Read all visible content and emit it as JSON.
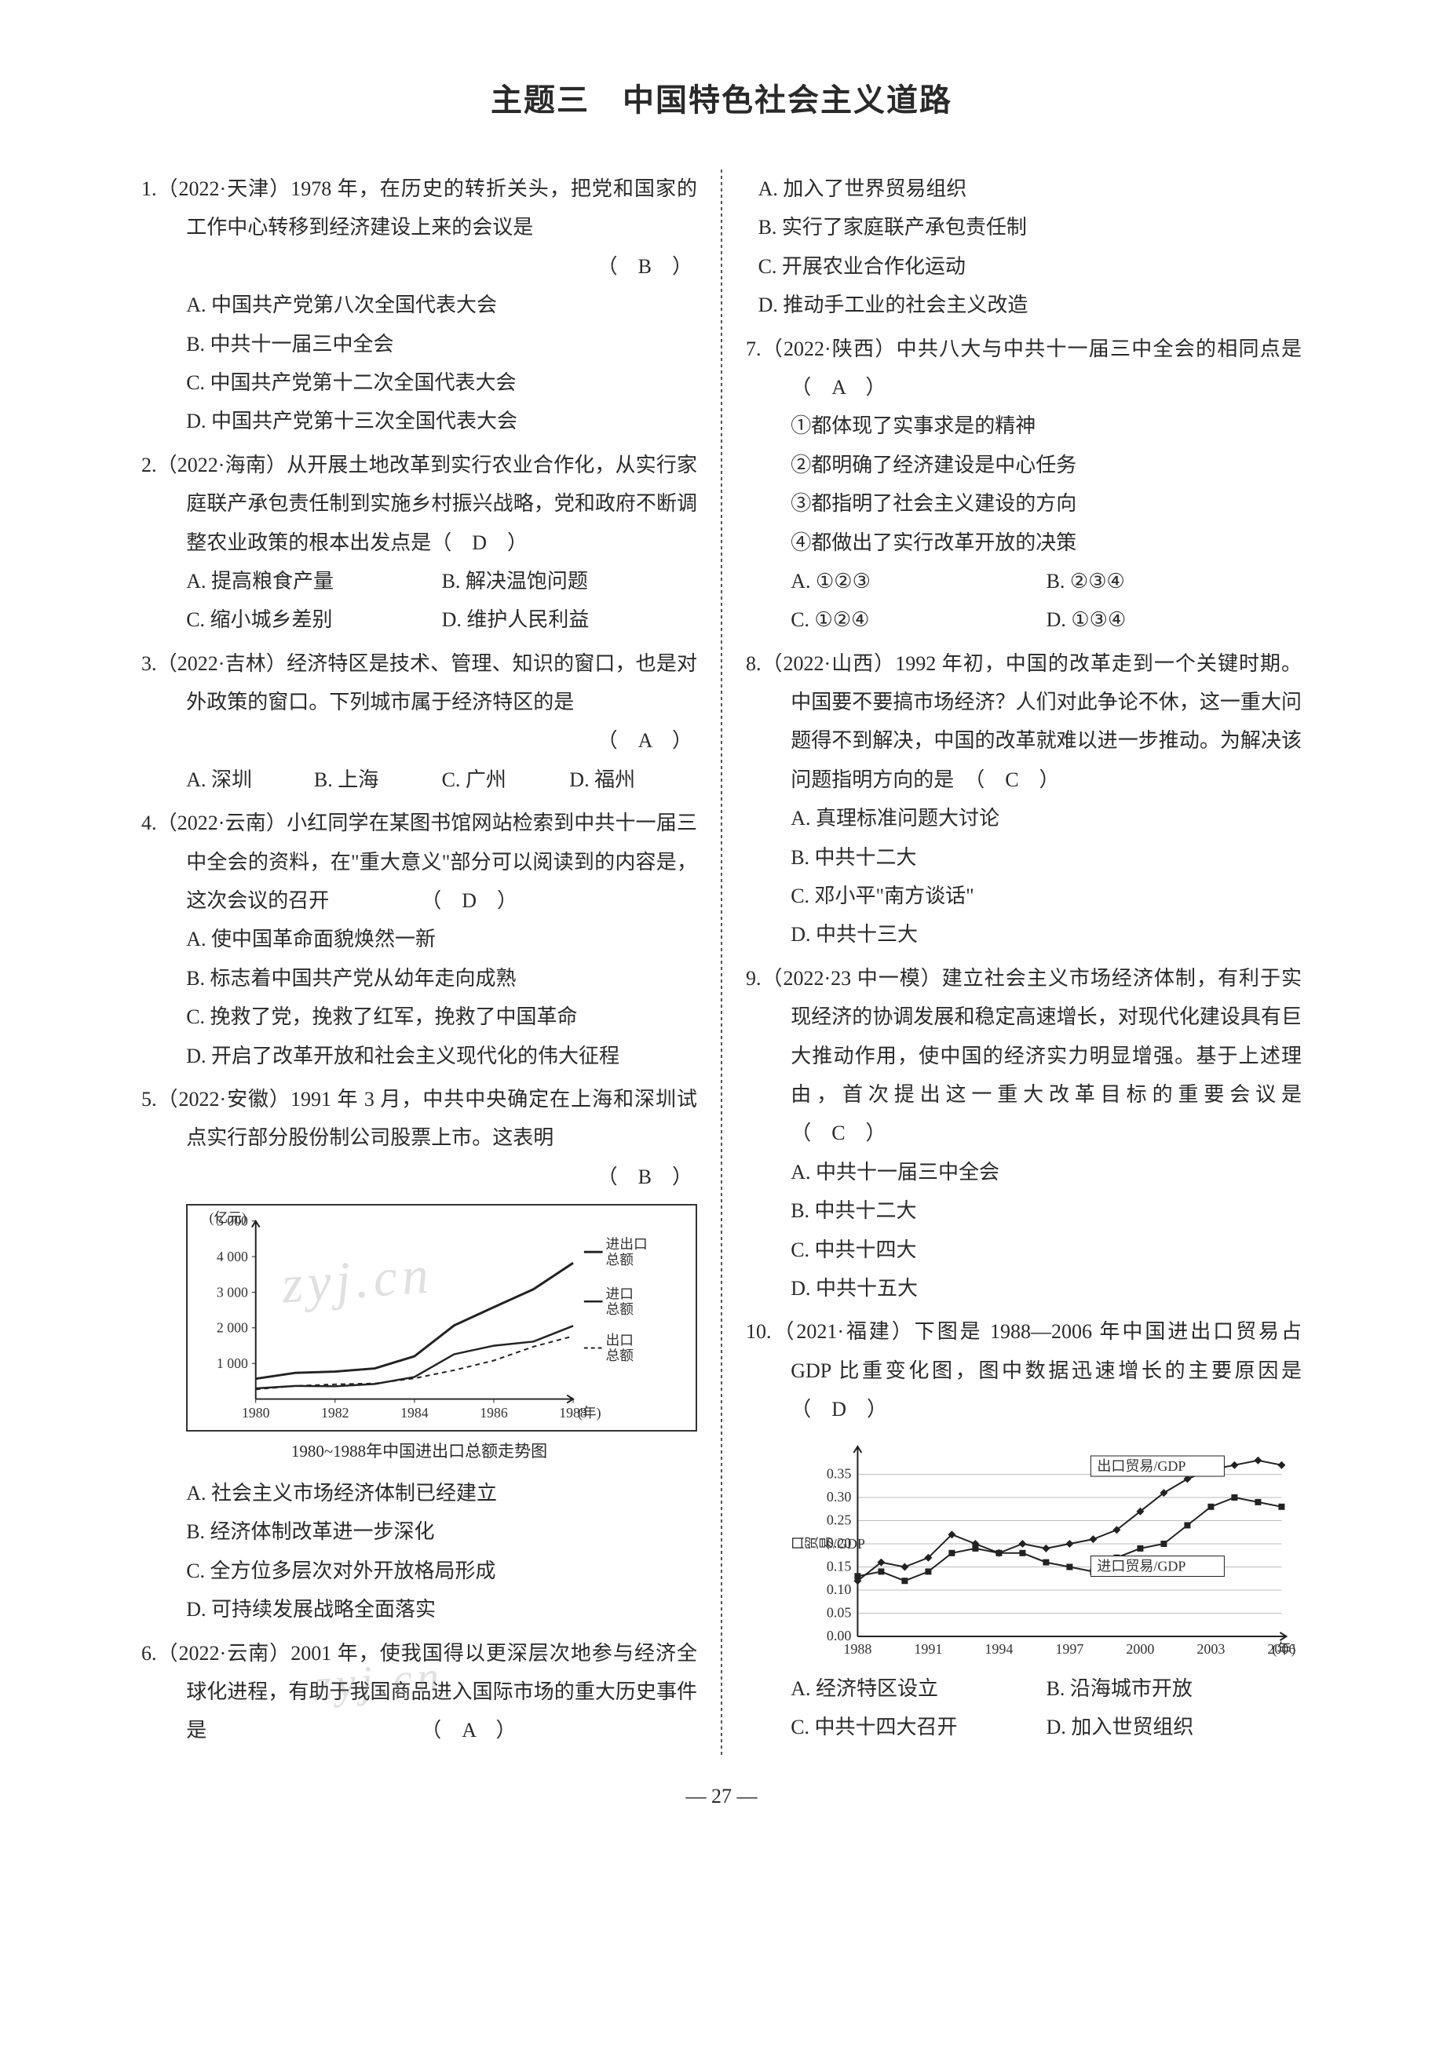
{
  "title": "主题三　中国特色社会主义道路",
  "page_number": "— 27 —",
  "watermark_text": "zyj.cn",
  "questions": {
    "q1": {
      "stem": "1.（2022·天津）1978 年，在历史的转折关头，把党和国家的工作中心转移到经济建设上来的会议是",
      "answer": "（　B　）",
      "opts": {
        "a": "A. 中国共产党第八次全国代表大会",
        "b": "B. 中共十一届三中全会",
        "c": "C. 中国共产党第十二次全国代表大会",
        "d": "D. 中国共产党第十三次全国代表大会"
      }
    },
    "q2": {
      "stem": "2.（2022·海南）从开展土地改革到实行农业合作化，从实行家庭联产承包责任制到实施乡村振兴战略，党和政府不断调整农业政策的根本出发点是（　D　）",
      "opts": {
        "a": "A. 提高粮食产量",
        "b": "B. 解决温饱问题",
        "c": "C. 缩小城乡差别",
        "d": "D. 维护人民利益"
      }
    },
    "q3": {
      "stem": "3.（2022·吉林）经济特区是技术、管理、知识的窗口，也是对外政策的窗口。下列城市属于经济特区的是",
      "answer": "（　A　）",
      "opts": {
        "a": "A. 深圳",
        "b": "B. 上海",
        "c": "C. 广州",
        "d": "D. 福州"
      }
    },
    "q4": {
      "stem": "4.（2022·云南）小红同学在某图书馆网站检索到中共十一届三中全会的资料，在\"重大意义\"部分可以阅读到的内容是，这次会议的召开　　　　　（　D　）",
      "opts": {
        "a": "A. 使中国革命面貌焕然一新",
        "b": "B. 标志着中国共产党从幼年走向成熟",
        "c": "C. 挽救了党，挽救了红军，挽救了中国革命",
        "d": "D. 开启了改革开放和社会主义现代化的伟大征程"
      }
    },
    "q5": {
      "stem": "5.（2022·安徽）1991 年 3 月，中共中央确定在上海和深圳试点实行部分股份制公司股票上市。这表明",
      "answer": "（　B　）",
      "opts": {
        "a": "A. 社会主义市场经济体制已经建立",
        "b": "B. 经济体制改革进一步深化",
        "c": "C. 全方位多层次对外开放格局形成",
        "d": "D. 可持续发展战略全面落实"
      }
    },
    "q6": {
      "stem": "6.（2022·云南）2001 年，使我国得以更深层次地参与经济全球化进程，有助于我国商品进入国际市场的重大历史事件是　　　　　　　　　　　（　A　）",
      "opts": {
        "a": "A. 加入了世界贸易组织",
        "b": "B. 实行了家庭联产承包责任制",
        "c": "C. 开展农业合作化运动",
        "d": "D. 推动手工业的社会主义改造"
      }
    },
    "q7": {
      "stem": "7.（2022·陕西）中共八大与中共十一届三中全会的相同点是　　　　　　　　　　　　　　（　A　）",
      "items": {
        "i1": "①都体现了实事求是的精神",
        "i2": "②都明确了经济建设是中心任务",
        "i3": "③都指明了社会主义建设的方向",
        "i4": "④都做出了实行改革开放的决策"
      },
      "opts": {
        "a": "A. ①②③",
        "b": "B. ②③④",
        "c": "C. ①②④",
        "d": "D. ①③④"
      }
    },
    "q8": {
      "stem": "8.（2022·山西）1992 年初，中国的改革走到一个关键时期。中国要不要搞市场经济？人们对此争论不休，这一重大问题得不到解决，中国的改革就难以进一步推动。为解决该问题指明方向的是　（　C　）",
      "opts": {
        "a": "A. 真理标准问题大讨论",
        "b": "B. 中共十二大",
        "c": "C. 邓小平\"南方谈话\"",
        "d": "D. 中共十三大"
      }
    },
    "q9": {
      "stem": "9.（2022·23 中一模）建立社会主义市场经济体制，有利于实现经济的协调发展和稳定高速增长，对现代化建设具有巨大推动作用，使中国的经济实力明显增强。基于上述理由，首次提出这一重大改革目标的重要会议是　　　　　　　　　　　　（　C　）",
      "opts": {
        "a": "A. 中共十一届三中全会",
        "b": "B. 中共十二大",
        "c": "C. 中共十四大",
        "d": "D. 中共十五大"
      }
    },
    "q10": {
      "stem": "10.（2021·福建）下图是 1988—2006 年中国进出口贸易占 GDP 比重变化图，图中数据迅速增长的主要原因是　　　　　　　　　　　　　　（　D　）",
      "opts": {
        "a": "A. 经济特区设立",
        "b": "B. 沿海城市开放",
        "c": "C. 中共十四大召开",
        "d": "D. 加入世贸组织"
      }
    }
  },
  "chart1": {
    "caption": "1980~1988年中国进出口总额走势图",
    "y_label": "(亿元)",
    "x_label_suffix": "(年)",
    "y_ticks": [
      1000,
      2000,
      3000,
      4000,
      5000
    ],
    "x_ticks": [
      1980,
      1982,
      1984,
      1986,
      1988
    ],
    "legend": {
      "total": "进出口总额",
      "import": "进口总额",
      "export": "出口总额"
    },
    "series_total": [
      570,
      735,
      771,
      860,
      1201,
      2067,
      2580,
      3084,
      3822
    ],
    "series_import": [
      299,
      368,
      358,
      422,
      620,
      1258,
      1498,
      1614,
      2055
    ],
    "series_export": [
      271,
      368,
      413,
      438,
      581,
      809,
      1082,
      1470,
      1767
    ],
    "colors": {
      "line": "#222222",
      "bg": "#ffffff",
      "border": "#333333"
    }
  },
  "chart2": {
    "y_label": "进出口贸易/GDP",
    "x_label_suffix": "(年)",
    "y_ticks": [
      0,
      0.05,
      0.1,
      0.15,
      0.2,
      0.25,
      0.3,
      0.35
    ],
    "x_ticks": [
      1988,
      1991,
      1994,
      1997,
      2000,
      2003,
      2006
    ],
    "legend": {
      "export": "出口贸易/GDP",
      "import": "进口贸易/GDP"
    },
    "series_export_gdp": [
      0.12,
      0.16,
      0.15,
      0.17,
      0.22,
      0.2,
      0.18,
      0.2,
      0.19,
      0.2,
      0.21,
      0.23,
      0.27,
      0.31,
      0.34,
      0.36,
      0.37,
      0.38,
      0.37
    ],
    "series_import_gdp": [
      0.13,
      0.14,
      0.12,
      0.14,
      0.18,
      0.19,
      0.18,
      0.18,
      0.16,
      0.15,
      0.14,
      0.17,
      0.19,
      0.2,
      0.24,
      0.28,
      0.3,
      0.29,
      0.28
    ],
    "colors": {
      "line": "#222222",
      "grid": "#bbbbbb",
      "bg": "#ffffff"
    }
  }
}
